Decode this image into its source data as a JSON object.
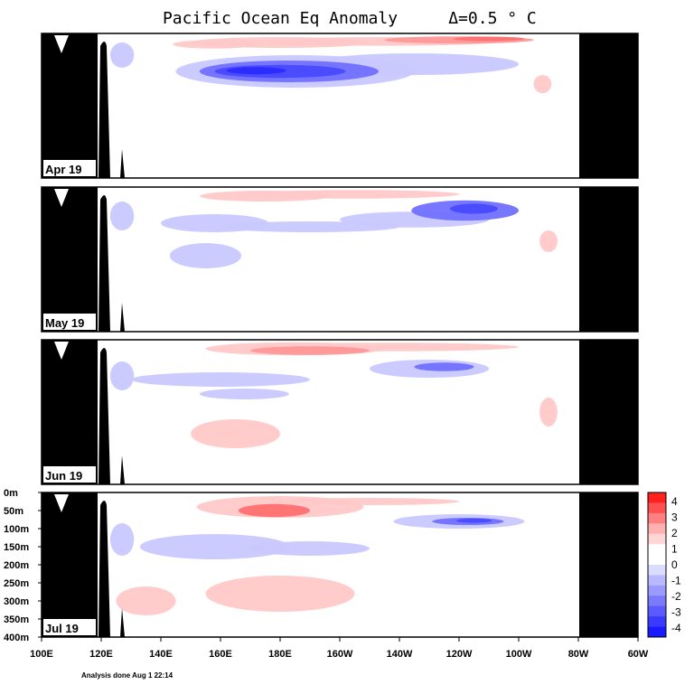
{
  "chart_data": {
    "type": "heatmap",
    "title": "Pacific Ocean Eq Anomaly",
    "interval_label": "Δ=0.5 ° C",
    "footnote": "Analysis done Aug 1 22:14",
    "x_ticks": [
      "100E",
      "120E",
      "140E",
      "160E",
      "180E",
      "160W",
      "140W",
      "120W",
      "100W",
      "80W",
      "60W"
    ],
    "x_lon": [
      100,
      120,
      140,
      160,
      180,
      200,
      220,
      240,
      260,
      280,
      300
    ],
    "xlim": [
      100,
      300
    ],
    "depth_ticks": [
      "0m",
      "50m",
      "100m",
      "150m",
      "200m",
      "250m",
      "300m",
      "350m",
      "400m"
    ],
    "depth_values": [
      0,
      50,
      100,
      150,
      200,
      250,
      300,
      350,
      400
    ],
    "ylim": [
      0,
      400
    ],
    "colorbar": {
      "labels": [
        "4",
        "3",
        "2",
        "1",
        "0",
        "-1",
        "-2",
        "-3",
        "-4"
      ],
      "colors": [
        "#ff2020",
        "#ff5050",
        "#ff8080",
        "#ffb0b0",
        "#ffd6d6",
        "#ffffff",
        "#ffffff",
        "#dcdcff",
        "#b9b9ff",
        "#9a9aff",
        "#7a7aff",
        "#5a5aff",
        "#3a3aff",
        "#1a1aff"
      ]
    },
    "panels": [
      {
        "month": "Apr 19",
        "anomalies": [
          {
            "lon": 158,
            "depth": 30,
            "rx": 14,
            "ry": 12,
            "value": 1.0
          },
          {
            "lon": 180,
            "depth": 25,
            "rx": 30,
            "ry": 15,
            "value": 1.0
          },
          {
            "lon": 215,
            "depth": 22,
            "rx": 40,
            "ry": 12,
            "value": 1.0
          },
          {
            "lon": 240,
            "depth": 18,
            "rx": 25,
            "ry": 10,
            "value": 1.5
          },
          {
            "lon": 250,
            "depth": 15,
            "rx": 12,
            "ry": 6,
            "value": 2.0
          },
          {
            "lon": 127,
            "depth": 60,
            "rx": 4,
            "ry": 35,
            "value": -1.0
          },
          {
            "lon": 185,
            "depth": 105,
            "rx": 40,
            "ry": 45,
            "value": -1.0
          },
          {
            "lon": 225,
            "depth": 85,
            "rx": 35,
            "ry": 30,
            "value": -1.0
          },
          {
            "lon": 183,
            "depth": 105,
            "rx": 30,
            "ry": 30,
            "value": -2.0
          },
          {
            "lon": 180,
            "depth": 105,
            "rx": 22,
            "ry": 18,
            "value": -3.0
          },
          {
            "lon": 172,
            "depth": 103,
            "rx": 10,
            "ry": 10,
            "value": -4.0
          },
          {
            "lon": 268,
            "depth": 140,
            "rx": 3,
            "ry": 25,
            "value": 1.0
          }
        ]
      },
      {
        "month": "May 19",
        "anomalies": [
          {
            "lon": 175,
            "depth": 25,
            "rx": 22,
            "ry": 15,
            "value": 1.0
          },
          {
            "lon": 205,
            "depth": 20,
            "rx": 35,
            "ry": 12,
            "value": 1.0
          },
          {
            "lon": 127,
            "depth": 80,
            "rx": 4,
            "ry": 40,
            "value": -1.0
          },
          {
            "lon": 158,
            "depth": 100,
            "rx": 18,
            "ry": 25,
            "value": -1.0
          },
          {
            "lon": 190,
            "depth": 110,
            "rx": 30,
            "ry": 15,
            "value": -1.0
          },
          {
            "lon": 225,
            "depth": 90,
            "rx": 25,
            "ry": 22,
            "value": -1.0
          },
          {
            "lon": 242,
            "depth": 65,
            "rx": 18,
            "ry": 28,
            "value": -2.0
          },
          {
            "lon": 245,
            "depth": 60,
            "rx": 8,
            "ry": 14,
            "value": -3.0
          },
          {
            "lon": 155,
            "depth": 190,
            "rx": 12,
            "ry": 35,
            "value": -1.0
          },
          {
            "lon": 270,
            "depth": 150,
            "rx": 3,
            "ry": 30,
            "value": 1.0
          }
        ]
      },
      {
        "month": "Jun 19",
        "anomalies": [
          {
            "lon": 185,
            "depth": 25,
            "rx": 30,
            "ry": 18,
            "value": 1.0
          },
          {
            "lon": 215,
            "depth": 20,
            "rx": 45,
            "ry": 12,
            "value": 1.0
          },
          {
            "lon": 190,
            "depth": 30,
            "rx": 20,
            "ry": 12,
            "value": 1.5
          },
          {
            "lon": 127,
            "depth": 100,
            "rx": 4,
            "ry": 40,
            "value": -1.0
          },
          {
            "lon": 160,
            "depth": 110,
            "rx": 30,
            "ry": 20,
            "value": -1.0
          },
          {
            "lon": 168,
            "depth": 150,
            "rx": 15,
            "ry": 15,
            "value": -1.0
          },
          {
            "lon": 230,
            "depth": 80,
            "rx": 20,
            "ry": 25,
            "value": -1.0
          },
          {
            "lon": 235,
            "depth": 75,
            "rx": 10,
            "ry": 12,
            "value": -2.0
          },
          {
            "lon": 165,
            "depth": 260,
            "rx": 15,
            "ry": 40,
            "value": 1.0
          },
          {
            "lon": 270,
            "depth": 200,
            "rx": 3,
            "ry": 40,
            "value": 1.0
          }
        ]
      },
      {
        "month": "Jul 19",
        "anomalies": [
          {
            "lon": 180,
            "depth": 40,
            "rx": 28,
            "ry": 30,
            "value": 1.0
          },
          {
            "lon": 178,
            "depth": 50,
            "rx": 12,
            "ry": 18,
            "value": 2.0
          },
          {
            "lon": 210,
            "depth": 25,
            "rx": 30,
            "ry": 10,
            "value": 1.0
          },
          {
            "lon": 127,
            "depth": 130,
            "rx": 4,
            "ry": 45,
            "value": -1.0
          },
          {
            "lon": 158,
            "depth": 150,
            "rx": 25,
            "ry": 35,
            "value": -1.0
          },
          {
            "lon": 190,
            "depth": 155,
            "rx": 20,
            "ry": 20,
            "value": -1.0
          },
          {
            "lon": 240,
            "depth": 80,
            "rx": 22,
            "ry": 20,
            "value": -1.0
          },
          {
            "lon": 243,
            "depth": 80,
            "rx": 12,
            "ry": 10,
            "value": -2.0
          },
          {
            "lon": 245,
            "depth": 78,
            "rx": 6,
            "ry": 6,
            "value": -3.0
          },
          {
            "lon": 180,
            "depth": 280,
            "rx": 25,
            "ry": 50,
            "value": 1.0
          },
          {
            "lon": 135,
            "depth": 300,
            "rx": 10,
            "ry": 40,
            "value": 1.0
          }
        ]
      }
    ]
  }
}
